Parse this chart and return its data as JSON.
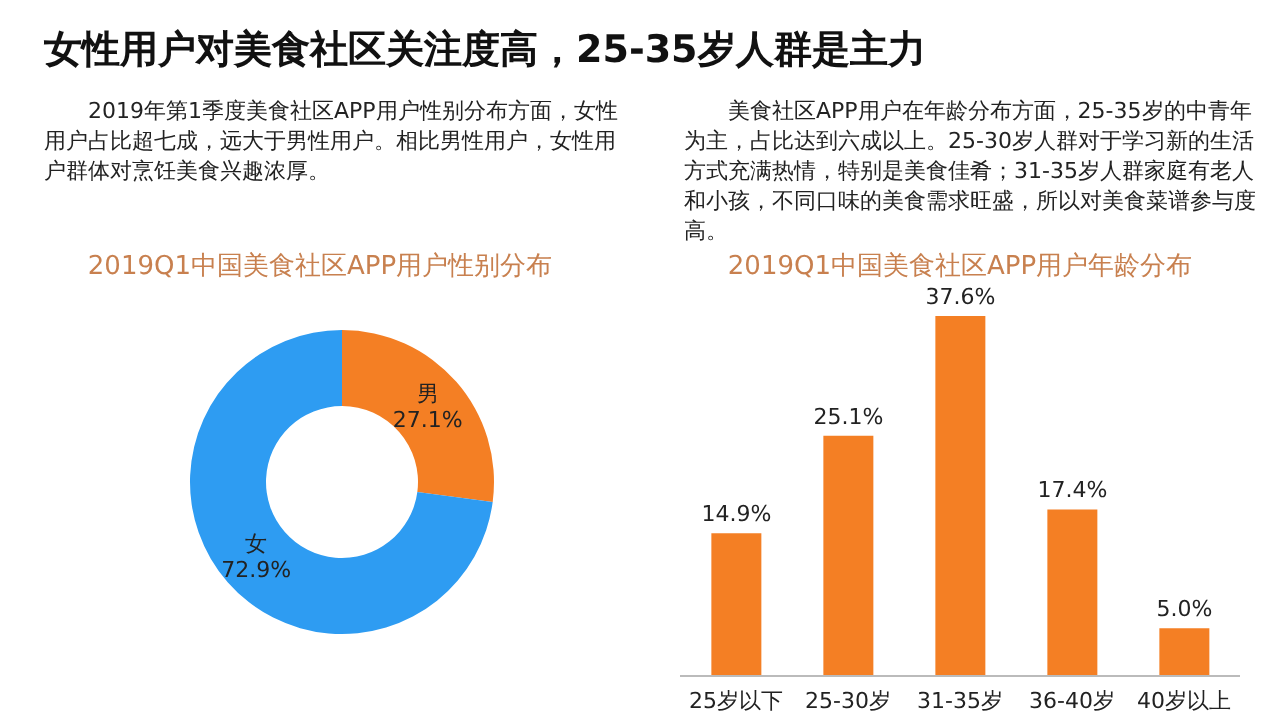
{
  "chart_data": [
    {
      "type": "donut",
      "annotations": [
        "女性用户对美食社区关注度高，25-35岁人群是主力"
      ],
      "subtitle": "2019年第1季度美食社区APP用户性别分布方面，女性用户占比超七成，远大于男性用户。相比男性用户，女性用户群体对烹饪美食兴趣浓厚。",
      "title": "2019Q1中国美食社区APP用户性别分布",
      "categories": [
        "男",
        "女"
      ],
      "values": [
        27.1,
        72.9
      ],
      "value_labels": [
        "27.1%",
        "72.9%"
      ],
      "colors": [
        "#f47f24",
        "#2e9cf2"
      ],
      "legend": false
    },
    {
      "type": "bar",
      "subtitle": "美食社区APP用户在年龄分布方面，25-35岁的中青年为主，占比达到六成以上。25-30岁人群对于学习新的生活方式充满热情，特别是美食佳肴；31-35岁人群家庭有老人和小孩，不同口味的美食需求旺盛，所以对美食菜谱参与度高。",
      "title": "2019Q1中国美食社区APP用户年龄分布",
      "categories": [
        "25岁以下",
        "25-30岁",
        "31-35岁",
        "36-40岁",
        "40岁以上"
      ],
      "values": [
        14.9,
        25.1,
        37.6,
        17.4,
        5.0
      ],
      "value_labels": [
        "14.9%",
        "25.1%",
        "37.6%",
        "17.4%",
        "5.0%"
      ],
      "color": "#f47f24",
      "grid": false,
      "legend": false,
      "tick_labels": "x"
    }
  ]
}
